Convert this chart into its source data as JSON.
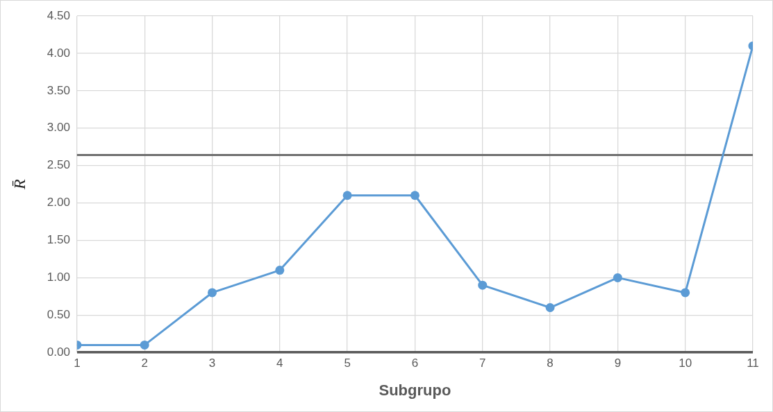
{
  "chart_data": {
    "type": "line",
    "xlabel": "Subgrupo",
    "ylabel": "R̄",
    "x": [
      1,
      2,
      3,
      4,
      5,
      6,
      7,
      8,
      9,
      10,
      11
    ],
    "series": [
      {
        "color": "#5b9bd5",
        "values": [
          0.1,
          0.1,
          0.8,
          1.1,
          2.1,
          2.1,
          0.9,
          0.6,
          1.0,
          0.8,
          4.1
        ]
      }
    ],
    "xlim": [
      1,
      11
    ],
    "xticks": [
      1,
      2,
      3,
      4,
      5,
      6,
      7,
      8,
      9,
      10,
      11
    ],
    "ylim": [
      0,
      4.5
    ],
    "yticks": [
      {
        "value": 0,
        "label": "0.00"
      },
      {
        "value": 0.5,
        "label": "0.50"
      },
      {
        "value": 1,
        "label": "1.00"
      },
      {
        "value": 1.5,
        "label": "1.50"
      },
      {
        "value": 2,
        "label": "2.00"
      },
      {
        "value": 2.5,
        "label": "2.50"
      },
      {
        "value": 3,
        "label": "3.00"
      },
      {
        "value": 3.5,
        "label": "3.50"
      },
      {
        "value": 4,
        "label": "4.00"
      },
      {
        "value": 4.5,
        "label": "4.50"
      }
    ],
    "ref_lines": [
      {
        "axis": "y",
        "value": 2.64,
        "color": "#6e6e6e"
      }
    ],
    "grid": true,
    "legend": false,
    "marker": "circle",
    "line_style": "solid"
  }
}
